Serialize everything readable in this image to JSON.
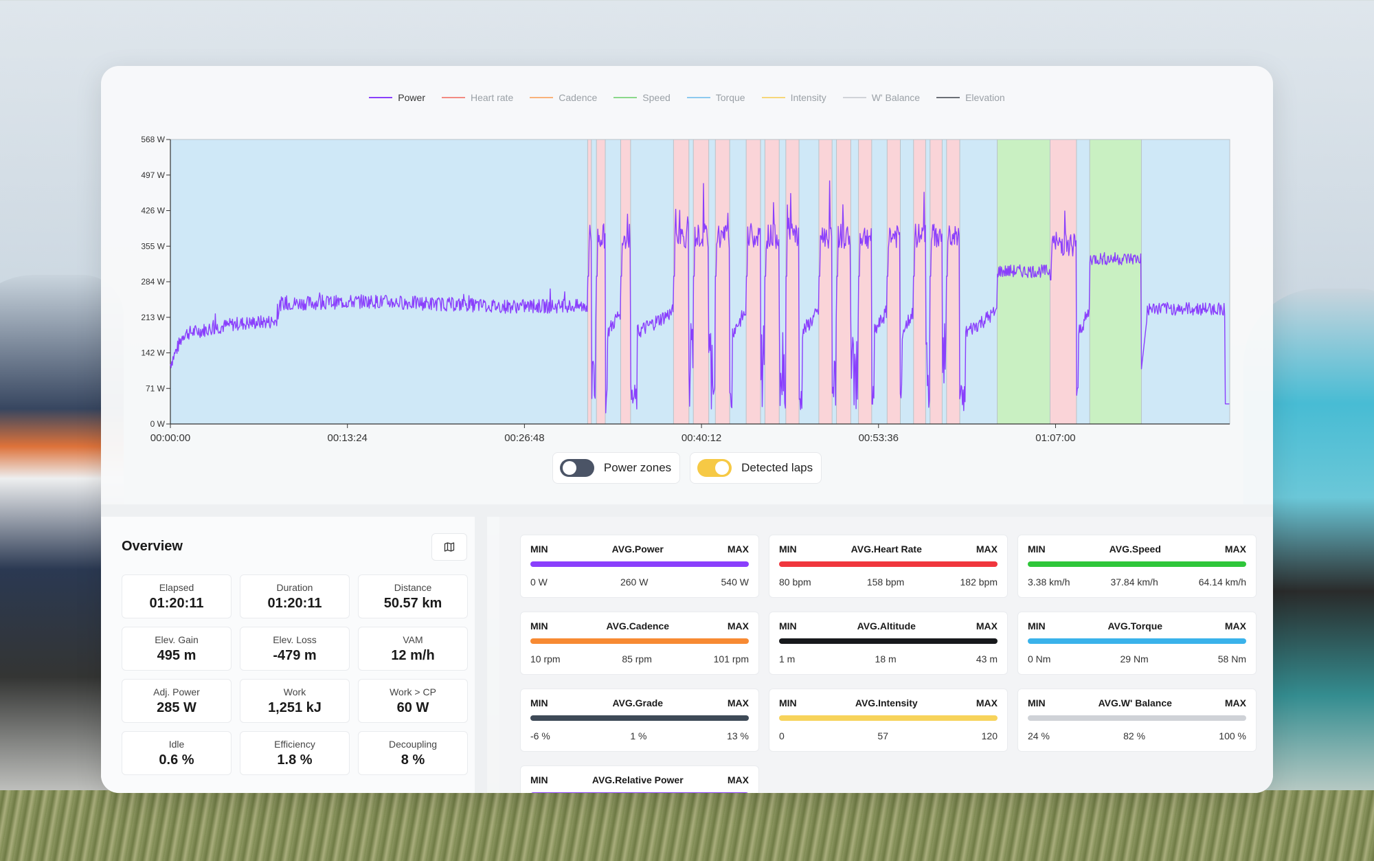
{
  "legend": [
    {
      "label": "Power",
      "color": "#8a3ffc",
      "active": true
    },
    {
      "label": "Heart rate",
      "color": "#f28b82",
      "active": false
    },
    {
      "label": "Cadence",
      "color": "#f9b27a",
      "active": false
    },
    {
      "label": "Speed",
      "color": "#8bd88b",
      "active": false
    },
    {
      "label": "Torque",
      "color": "#8cc9ef",
      "active": false
    },
    {
      "label": "Intensity",
      "color": "#f6d77a",
      "active": false
    },
    {
      "label": "W' Balance",
      "color": "#d0d3d8",
      "active": false
    },
    {
      "label": "Elevation",
      "color": "#6b6f76",
      "active": false
    }
  ],
  "chart_data": {
    "type": "line",
    "series": [
      {
        "name": "Power",
        "color": "#8a3ffc"
      }
    ],
    "y_ticks": [
      "568 W",
      "497 W",
      "426 W",
      "355 W",
      "284 W",
      "213 W",
      "142 W",
      "71 W",
      "0 W"
    ],
    "ylim": [
      0,
      568
    ],
    "x_ticks": [
      "00:00:00",
      "00:13:24",
      "00:26:48",
      "00:40:12",
      "00:53:36",
      "01:07:00"
    ],
    "xlim_seconds": [
      0,
      4811
    ],
    "laps": [
      {
        "start": 0,
        "end": 1895,
        "kind": "rest"
      },
      {
        "start": 1895,
        "end": 1912,
        "kind": "work"
      },
      {
        "start": 1912,
        "end": 1935,
        "kind": "rest"
      },
      {
        "start": 1935,
        "end": 1975,
        "kind": "work"
      },
      {
        "start": 1975,
        "end": 2045,
        "kind": "rest"
      },
      {
        "start": 2045,
        "end": 2090,
        "kind": "work"
      },
      {
        "start": 2090,
        "end": 2285,
        "kind": "rest"
      },
      {
        "start": 2285,
        "end": 2355,
        "kind": "work"
      },
      {
        "start": 2355,
        "end": 2375,
        "kind": "rest"
      },
      {
        "start": 2375,
        "end": 2445,
        "kind": "work"
      },
      {
        "start": 2445,
        "end": 2475,
        "kind": "rest"
      },
      {
        "start": 2475,
        "end": 2540,
        "kind": "work"
      },
      {
        "start": 2540,
        "end": 2615,
        "kind": "rest"
      },
      {
        "start": 2615,
        "end": 2680,
        "kind": "work"
      },
      {
        "start": 2680,
        "end": 2700,
        "kind": "rest"
      },
      {
        "start": 2700,
        "end": 2765,
        "kind": "work"
      },
      {
        "start": 2765,
        "end": 2795,
        "kind": "rest"
      },
      {
        "start": 2795,
        "end": 2855,
        "kind": "work"
      },
      {
        "start": 2855,
        "end": 2945,
        "kind": "rest"
      },
      {
        "start": 2945,
        "end": 3005,
        "kind": "work"
      },
      {
        "start": 3005,
        "end": 3025,
        "kind": "rest"
      },
      {
        "start": 3025,
        "end": 3090,
        "kind": "work"
      },
      {
        "start": 3090,
        "end": 3125,
        "kind": "rest"
      },
      {
        "start": 3125,
        "end": 3185,
        "kind": "work"
      },
      {
        "start": 3185,
        "end": 3255,
        "kind": "rest"
      },
      {
        "start": 3255,
        "end": 3315,
        "kind": "work"
      },
      {
        "start": 3315,
        "end": 3375,
        "kind": "rest"
      },
      {
        "start": 3375,
        "end": 3430,
        "kind": "work"
      },
      {
        "start": 3430,
        "end": 3450,
        "kind": "rest"
      },
      {
        "start": 3450,
        "end": 3505,
        "kind": "work"
      },
      {
        "start": 3505,
        "end": 3525,
        "kind": "rest"
      },
      {
        "start": 3525,
        "end": 3585,
        "kind": "work"
      },
      {
        "start": 3585,
        "end": 3755,
        "kind": "rest"
      },
      {
        "start": 3755,
        "end": 3995,
        "kind": "tempo"
      },
      {
        "start": 3995,
        "end": 4115,
        "kind": "work"
      },
      {
        "start": 4115,
        "end": 4175,
        "kind": "rest"
      },
      {
        "start": 4175,
        "end": 4410,
        "kind": "tempo"
      },
      {
        "start": 4410,
        "end": 4811,
        "kind": "rest"
      }
    ],
    "lap_colors": {
      "rest": "#cfe8f7",
      "work": "#fad4d8",
      "tempo": "#c9f0c2"
    },
    "baseline": [
      {
        "t": 0,
        "w": 120
      },
      {
        "t": 60,
        "w": 180
      },
      {
        "t": 300,
        "w": 200
      },
      {
        "t": 480,
        "w": 205
      },
      {
        "t": 500,
        "w": 240
      },
      {
        "t": 900,
        "w": 245
      },
      {
        "t": 1500,
        "w": 235
      },
      {
        "t": 1895,
        "w": 235
      }
    ],
    "work_power": 375,
    "rest_power": 215,
    "tempo1_power": 305,
    "work_last_power": 360,
    "tempo2_power": 330,
    "final_power": 230
  },
  "toggles": [
    {
      "label": "Power zones",
      "state": "off"
    },
    {
      "label": "Detected laps",
      "state": "on"
    }
  ],
  "overview": {
    "title": "Overview",
    "stats": [
      {
        "label": "Elapsed",
        "value": "01:20:11"
      },
      {
        "label": "Duration",
        "value": "01:20:11"
      },
      {
        "label": "Distance",
        "value": "50.57 km"
      },
      {
        "label": "Elev. Gain",
        "value": "495 m"
      },
      {
        "label": "Elev. Loss",
        "value": "-479 m"
      },
      {
        "label": "VAM",
        "value": "12 m/h"
      },
      {
        "label": "Adj. Power",
        "value": "285 W"
      },
      {
        "label": "Work",
        "value": "1,251 kJ"
      },
      {
        "label": "Work > CP",
        "value": "60 W"
      },
      {
        "label": "Idle",
        "value": "0.6 %"
      },
      {
        "label": "Efficiency",
        "value": "1.8 %"
      },
      {
        "label": "Decoupling",
        "value": "8 %"
      }
    ]
  },
  "metrics": [
    {
      "min_label": "MIN",
      "title": "AVG.Power",
      "max_label": "MAX",
      "color": "#8a3ffc",
      "min": "0 W",
      "avg": "260 W",
      "max": "540 W"
    },
    {
      "min_label": "MIN",
      "title": "AVG.Heart Rate",
      "max_label": "MAX",
      "color": "#f0363d",
      "min": "80 bpm",
      "avg": "158 bpm",
      "max": "182 bpm"
    },
    {
      "min_label": "MIN",
      "title": "AVG.Speed",
      "max_label": "MAX",
      "color": "#2fc63a",
      "min": "3.38 km/h",
      "avg": "37.84 km/h",
      "max": "64.14 km/h"
    },
    {
      "min_label": "MIN",
      "title": "AVG.Cadence",
      "max_label": "MAX",
      "color": "#f78a33",
      "min": "10 rpm",
      "avg": "85 rpm",
      "max": "101 rpm"
    },
    {
      "min_label": "MIN",
      "title": "AVG.Altitude",
      "max_label": "MAX",
      "color": "#17191c",
      "min": "1 m",
      "avg": "18 m",
      "max": "43 m"
    },
    {
      "min_label": "MIN",
      "title": "AVG.Torque",
      "max_label": "MAX",
      "color": "#3ab2ea",
      "min": "0 Nm",
      "avg": "29 Nm",
      "max": "58 Nm"
    },
    {
      "min_label": "MIN",
      "title": "AVG.Grade",
      "max_label": "MAX",
      "color": "#3e4a57",
      "min": "-6 %",
      "avg": "1 %",
      "max": "13 %"
    },
    {
      "min_label": "MIN",
      "title": "AVG.Intensity",
      "max_label": "MAX",
      "color": "#f7d35b",
      "min": "0",
      "avg": "57",
      "max": "120"
    },
    {
      "min_label": "MIN",
      "title": "AVG.W' Balance",
      "max_label": "MAX",
      "color": "#cfd2d7",
      "min": "24 %",
      "avg": "82 %",
      "max": "100 %"
    },
    {
      "min_label": "MIN",
      "title": "AVG.Relative Power",
      "max_label": "MAX",
      "color": "#8a3ffc",
      "min": "",
      "avg": "",
      "max": ""
    }
  ]
}
